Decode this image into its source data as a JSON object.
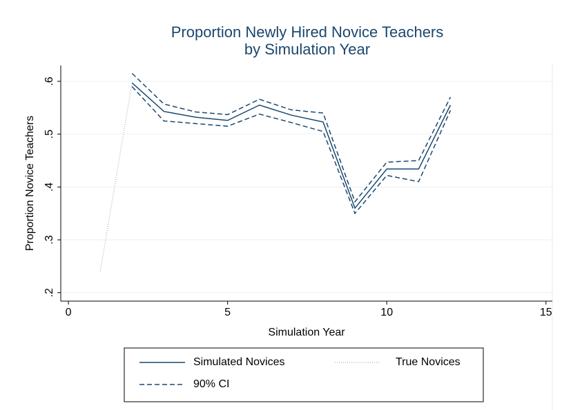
{
  "chart_data": {
    "type": "line",
    "title": "Proportion Newly Hired Novice Teachers",
    "subtitle": "by Simulation Year",
    "x_label": "Simulation Year",
    "y_label": "Proportion Novice Teachers",
    "x": [
      1,
      2,
      3,
      4,
      5,
      6,
      7,
      8,
      9,
      10,
      11,
      12
    ],
    "series": [
      {
        "name": "Simulated Novices",
        "color": "#1a476f",
        "style": "solid",
        "values": [
          null,
          0.597,
          0.543,
          0.532,
          0.526,
          0.555,
          0.536,
          0.523,
          0.36,
          0.434,
          0.434,
          0.555
        ]
      },
      {
        "name": "True Novices",
        "color": "#90a0b4",
        "style": "dotted",
        "values": [
          0.24,
          0.597,
          null,
          null,
          null,
          null,
          null,
          null,
          null,
          null,
          null,
          null
        ]
      },
      {
        "name": "90% CI",
        "color": "#1a476f",
        "style": "dashed",
        "values": [
          null,
          0.615,
          0.557,
          0.542,
          0.537,
          0.566,
          0.546,
          0.54,
          0.372,
          0.447,
          0.45,
          0.57
        ]
      },
      {
        "color": "#1a476f",
        "style": "dashed",
        "values": [
          null,
          0.59,
          0.525,
          0.52,
          0.515,
          0.538,
          0.522,
          0.505,
          0.35,
          0.422,
          0.41,
          0.545
        ]
      }
    ],
    "xlim": [
      -0.24,
      15.2
    ],
    "xticks": [
      0,
      5,
      10,
      15
    ],
    "ylim": [
      0.184,
      0.63
    ],
    "yticks": [
      {
        "value": 0.2,
        "label": ".2"
      },
      {
        "value": 0.3,
        "label": ".3"
      },
      {
        "value": 0.4,
        "label": ".4"
      },
      {
        "value": 0.5,
        "label": ".5"
      },
      {
        "value": 0.6,
        "label": ".6"
      }
    ],
    "grid": true,
    "legend": "bottom"
  }
}
